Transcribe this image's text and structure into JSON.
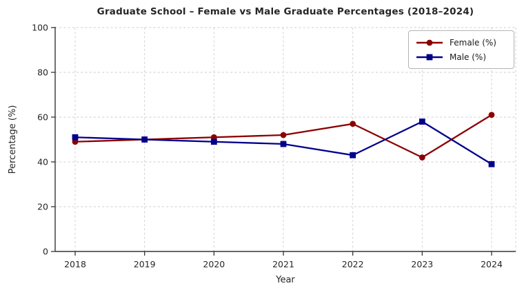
{
  "chart_data": {
    "type": "line",
    "title": "Graduate School – Female vs Male Graduate Percentages (2018–2024)",
    "xlabel": "Year",
    "ylabel": "Percentage (%)",
    "x": [
      2018,
      2019,
      2020,
      2021,
      2022,
      2023,
      2024
    ],
    "series": [
      {
        "name": "Female (%)",
        "color": "#8B0000",
        "marker": "circle",
        "values": [
          49,
          50,
          51,
          52,
          57,
          42,
          61
        ]
      },
      {
        "name": "Male (%)",
        "color": "#00008B",
        "marker": "square",
        "values": [
          51,
          50,
          49,
          48,
          43,
          58,
          39
        ]
      }
    ],
    "ylim": [
      0,
      100
    ],
    "yticks": [
      0,
      20,
      40,
      60,
      80,
      100
    ],
    "grid": "dashed-both-axes",
    "legend_position": "top-right",
    "colors": {
      "grid": "#cccccc",
      "spine": "#333333",
      "tick_label": "#262626",
      "title": "#262626",
      "background": "#ffffff"
    }
  }
}
